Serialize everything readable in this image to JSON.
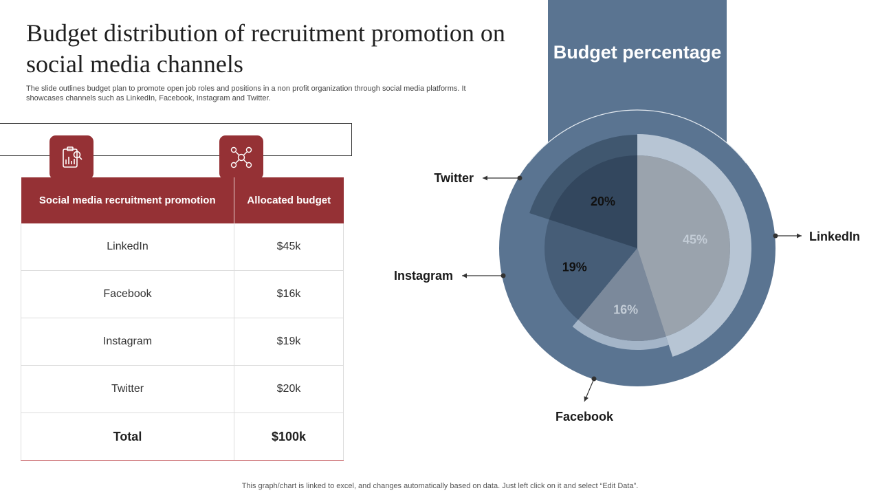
{
  "title": "Budget distribution of recruitment promotion on social media channels",
  "subtitle": "The slide outlines budget plan to promote open job roles and positions in a non profit organization through social media platforms. It showcases channels such as LinkedIn, Facebook, Instagram and Twitter.",
  "icons": {
    "left": "clipboard-chart-icon",
    "right": "people-network-icon"
  },
  "table": {
    "headers": [
      "Social media recruitment promotion",
      "Allocated budget"
    ],
    "rows": [
      {
        "channel": "LinkedIn",
        "budget": "$45k"
      },
      {
        "channel": "Facebook",
        "budget": "$16k"
      },
      {
        "channel": "Instagram",
        "budget": "$19k"
      },
      {
        "channel": "Twitter",
        "budget": "$20k"
      }
    ],
    "total": {
      "label": "Total",
      "value": "$100k"
    }
  },
  "banner": {
    "title": "Budget percentage"
  },
  "colors": {
    "accent_red": "#953135",
    "banner_blue": "#5a7491",
    "slice_linkedin": "#9aa3ad",
    "slice_facebook": "#7b899b",
    "slice_instagram": "#465d77",
    "slice_twitter": "#33475e"
  },
  "chart_data": {
    "type": "pie",
    "title": "Budget percentage",
    "series": [
      {
        "name": "LinkedIn",
        "value": 45,
        "label": "45%"
      },
      {
        "name": "Facebook",
        "value": 16,
        "label": "16%"
      },
      {
        "name": "Instagram",
        "value": 19,
        "label": "19%"
      },
      {
        "name": "Twitter",
        "value": 20,
        "label": "20%"
      }
    ]
  },
  "footer": "This graph/chart is linked to excel, and changes automatically based on data. Just left click on it and select “Edit Data”."
}
